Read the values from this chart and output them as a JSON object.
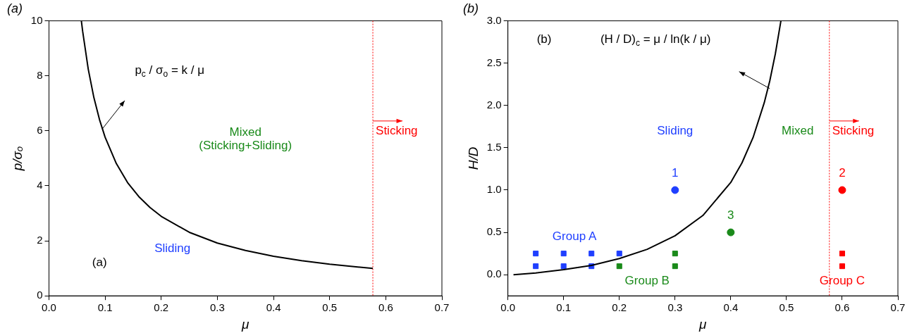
{
  "chart_data": [
    {
      "type": "line",
      "title": "(a)",
      "xlabel": "μ",
      "ylabel": "p/σₒ",
      "xlim": [
        0,
        0.7
      ],
      "ylim": [
        0,
        10
      ],
      "xticks": [
        {
          "value": 0,
          "label": "0.0"
        },
        0.1,
        0.2,
        0.3,
        0.4,
        0.5,
        0.6,
        0.7
      ],
      "yticks": [
        0,
        2,
        4,
        6,
        8,
        10
      ],
      "grid": false,
      "legend": false,
      "series": [
        {
          "color": "#000000",
          "marker": "none",
          "x": [
            0.0577,
            0.06,
            0.07,
            0.08,
            0.09,
            0.1,
            0.12,
            0.14,
            0.16,
            0.18,
            0.2,
            0.25,
            0.3,
            0.35,
            0.4,
            0.45,
            0.5,
            0.55,
            0.577
          ],
          "values": [
            10,
            9.62,
            8.24,
            7.21,
            6.41,
            5.77,
            4.81,
            4.12,
            3.61,
            3.21,
            2.89,
            2.31,
            1.92,
            1.65,
            1.44,
            1.28,
            1.15,
            1.05,
            1.0
          ]
        }
      ],
      "ref_lines": [
        {
          "axis": "x",
          "value": 0.577,
          "label": "Sticking",
          "color": "#ff0000",
          "line_style": "dotted"
        }
      ],
      "annotations": [
        "(a)",
        "p$_{c}$ / σ$_{o}$ = k / μ",
        "Mixed\n(Sticking+Sliding)",
        "Sliding"
      ]
    },
    {
      "type": "scatter",
      "title": "(b)",
      "xlabel": "μ",
      "ylabel": "H/D",
      "xlim": [
        0,
        0.7
      ],
      "ylim": [
        -0.25,
        3.0
      ],
      "xticks": [
        {
          "value": 0,
          "label": "0.0"
        },
        0.1,
        0.2,
        0.3,
        0.4,
        0.5,
        0.6,
        0.7
      ],
      "yticks": [
        {
          "value": 0,
          "label": "0.0"
        },
        0.5,
        {
          "value": 1,
          "label": "1.0"
        },
        1.5,
        {
          "value": 2,
          "label": "2.0"
        },
        2.5,
        {
          "value": 3,
          "label": "3.0"
        }
      ],
      "grid": false,
      "legend": false,
      "series": [
        {
          "type": "line",
          "color": "#000000",
          "marker": "none",
          "x": [
            0.01,
            0.05,
            0.1,
            0.15,
            0.2,
            0.25,
            0.3,
            0.35,
            0.4,
            0.42,
            0.44,
            0.46,
            0.47,
            0.48,
            0.49
          ],
          "values": [
            0.0,
            0.02,
            0.06,
            0.11,
            0.19,
            0.3,
            0.46,
            0.7,
            1.09,
            1.32,
            1.62,
            2.03,
            2.29,
            2.61,
            3.0
          ]
        },
        {
          "color": "#1f3fff",
          "marker": "square",
          "x": [
            0.05,
            0.05,
            0.1,
            0.1,
            0.15,
            0.15,
            0.2
          ],
          "values": [
            0.1,
            0.25,
            0.1,
            0.25,
            0.1,
            0.25,
            0.25
          ]
        },
        {
          "color": "#1a8a1a",
          "marker": "square",
          "x": [
            0.2,
            0.3,
            0.3
          ],
          "values": [
            0.1,
            0.1,
            0.25
          ]
        },
        {
          "color": "#ff0000",
          "marker": "square",
          "x": [
            0.6,
            0.6
          ],
          "values": [
            0.1,
            0.25
          ]
        },
        {
          "colors": [
            "#1f3fff",
            "#ff0000",
            "#1a8a1a"
          ],
          "marker": "circle",
          "x": [
            0.3,
            0.6,
            0.4
          ],
          "values": [
            1.0,
            1.0,
            0.5
          ]
        }
      ],
      "ref_lines": [
        {
          "axis": "x",
          "value": 0.577,
          "label": "Sticking",
          "color": "#ff0000",
          "line_style": "dotted"
        }
      ],
      "annotations": [
        "(b)",
        "(H / D)$_{c}$ = μ / ln(k / μ)",
        "Sliding",
        "Mixed",
        "Group A",
        "Group B",
        "Group C",
        "1",
        "2",
        "3"
      ]
    }
  ]
}
